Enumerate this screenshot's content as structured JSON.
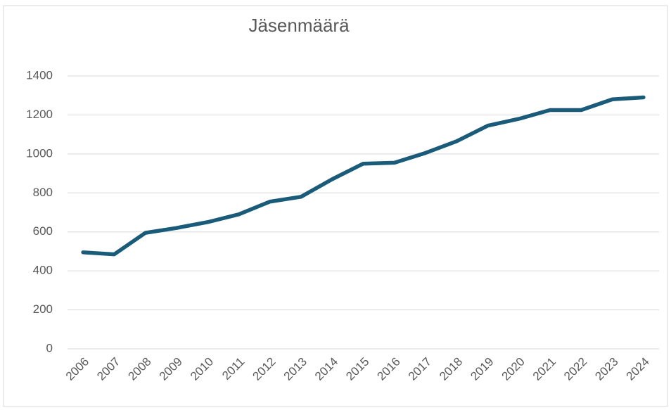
{
  "chart_data": {
    "type": "line",
    "title": "Jäsenmäärä",
    "categories": [
      "2006",
      "2007",
      "2008",
      "2009",
      "2010",
      "2011",
      "2012",
      "2013",
      "2014",
      "2015",
      "2016",
      "2017",
      "2018",
      "2019",
      "2020",
      "2021",
      "2022",
      "2023",
      "2024"
    ],
    "series": [
      {
        "name": "Jäsenmäärä",
        "color": "#1a5b7a",
        "values": [
          495,
          485,
          595,
          620,
          650,
          690,
          755,
          780,
          870,
          950,
          955,
          1005,
          1065,
          1145,
          1180,
          1225,
          1225,
          1280,
          1290
        ]
      }
    ],
    "ylim": [
      0,
      1400
    ],
    "yticks": [
      0,
      200,
      400,
      600,
      800,
      1000,
      1200,
      1400
    ],
    "grid": true
  }
}
